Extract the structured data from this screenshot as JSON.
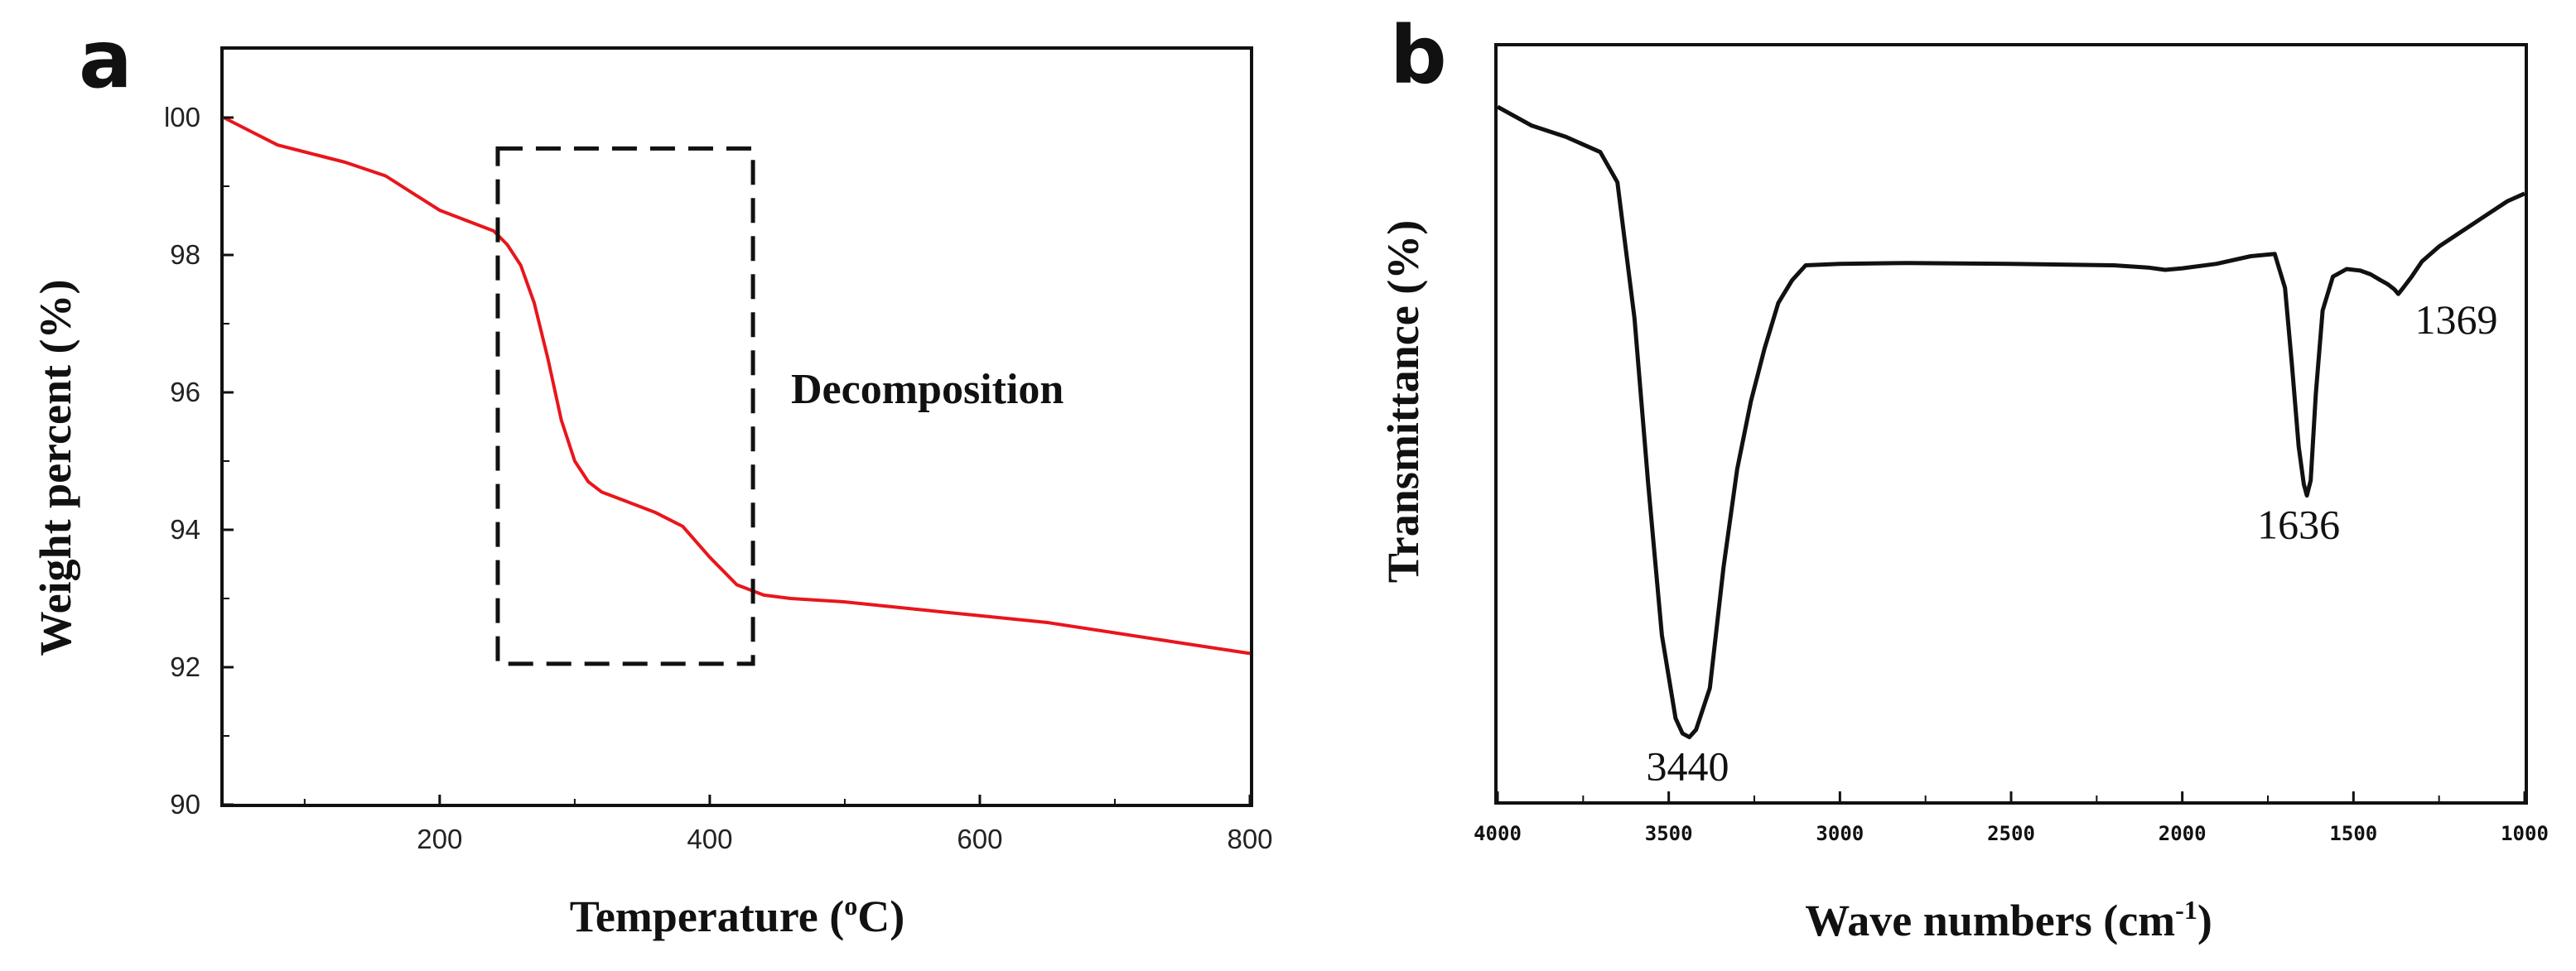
{
  "chart_data": [
    {
      "panel": "a",
      "type": "line",
      "xlabel_main": "Temperature (",
      "xlabel_sup": "o",
      "xlabel_end": "C)",
      "ylabel": "Weight percent (%)",
      "xlim": [
        40,
        800
      ],
      "ylim": [
        90,
        101
      ],
      "x_ticks": [
        200,
        400,
        600,
        800
      ],
      "x_tick_labels": [
        "200",
        "400",
        "600",
        "800"
      ],
      "y_ticks": [
        90,
        92,
        94,
        96,
        98,
        100
      ],
      "y_tick_labels": [
        "90",
        "92",
        "94",
        "96",
        "98",
        "l00"
      ],
      "color": "#e8161c",
      "series": [
        {
          "name": "Weight percent",
          "x": [
            40,
            60,
            80,
            100,
            130,
            160,
            180,
            200,
            220,
            240,
            250,
            260,
            270,
            280,
            290,
            300,
            310,
            320,
            340,
            360,
            380,
            400,
            420,
            440,
            460,
            500,
            550,
            600,
            650,
            700,
            750,
            800
          ],
          "y": [
            100.0,
            99.8,
            99.6,
            99.5,
            99.35,
            99.15,
            98.9,
            98.65,
            98.5,
            98.35,
            98.15,
            97.85,
            97.3,
            96.5,
            95.6,
            95.0,
            94.7,
            94.55,
            94.4,
            94.25,
            94.05,
            93.6,
            93.2,
            93.05,
            93.0,
            92.95,
            92.85,
            92.75,
            92.65,
            92.5,
            92.35,
            92.2
          ]
        }
      ],
      "annotation": {
        "text": "Decomposition",
        "box_x": [
          243,
          432
        ],
        "box_y": [
          92.05,
          99.55
        ]
      }
    },
    {
      "panel": "b",
      "type": "line",
      "xlabel_main": "Wave numbers (cm",
      "xlabel_sup": "-1",
      "xlabel_end": ")",
      "ylabel": "Transmittance (%)",
      "xlim": [
        4000,
        1000
      ],
      "ylim": [
        0,
        100
      ],
      "x_ticks": [
        4000,
        3500,
        3000,
        2500,
        2000,
        1500,
        1000
      ],
      "x_tick_labels": [
        "4000",
        "3500",
        "3000",
        "2500",
        "2000",
        "1500",
        "1000"
      ],
      "color": "#111111",
      "series": [
        {
          "name": "Transmittance",
          "x": [
            4000,
            3900,
            3800,
            3700,
            3650,
            3600,
            3560,
            3520,
            3480,
            3460,
            3440,
            3420,
            3380,
            3340,
            3300,
            3260,
            3220,
            3180,
            3140,
            3100,
            3000,
            2800,
            2500,
            2200,
            2100,
            2050,
            2000,
            1900,
            1800,
            1730,
            1700,
            1680,
            1660,
            1645,
            1636,
            1625,
            1610,
            1590,
            1560,
            1520,
            1480,
            1450,
            1420,
            1400,
            1380,
            1369,
            1355,
            1330,
            1300,
            1250,
            1200,
            1150,
            1100,
            1050,
            1000
          ],
          "y": [
            92.0,
            89.5,
            88.0,
            86.0,
            82.0,
            64.0,
            42.0,
            22.0,
            11.0,
            9.0,
            8.5,
            9.5,
            15.0,
            31.0,
            44.0,
            53.0,
            60.0,
            66.0,
            69.0,
            71.0,
            71.2,
            71.3,
            71.2,
            71.0,
            70.7,
            70.4,
            70.6,
            71.2,
            72.2,
            72.5,
            68.0,
            58.0,
            47.0,
            42.0,
            40.5,
            42.5,
            54.0,
            65.0,
            69.5,
            70.5,
            70.3,
            69.8,
            69.0,
            68.5,
            67.8,
            67.2,
            68.0,
            69.5,
            71.5,
            73.5,
            75.0,
            76.5,
            78.0,
            79.5,
            80.5
          ]
        }
      ],
      "peak_labels": [
        {
          "text": "3440",
          "x": 3440,
          "y": 8.5
        },
        {
          "text": "1636",
          "x": 1636,
          "y": 40.5
        },
        {
          "text": "1369",
          "x": 1369,
          "y": 67.2
        }
      ]
    }
  ],
  "panel_labels": [
    "a",
    "b"
  ]
}
